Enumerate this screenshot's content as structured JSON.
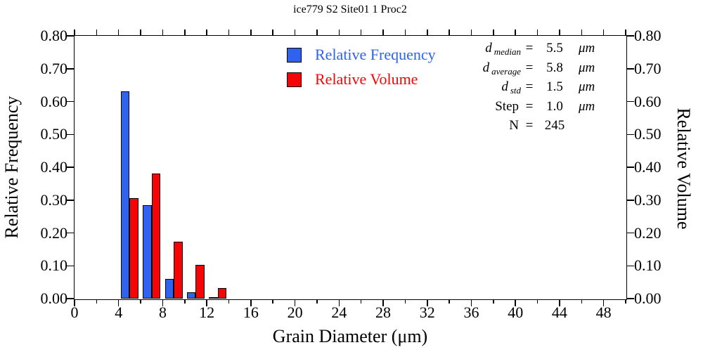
{
  "colors": {
    "frequency": "#2e62ef",
    "volume": "#f50505",
    "axis": "#000000",
    "background": "#ffffff"
  },
  "chart_data": {
    "type": "bar",
    "title": "ice779 S2 Site01 1 Proc2",
    "xlabel": "Grain Diameter (μm)",
    "ylabel_left": "Relative Frequency",
    "ylabel_right": "Relative Volume",
    "xlim": [
      0,
      50
    ],
    "ylim": [
      0,
      0.8
    ],
    "grid": "off",
    "legend_position": "upper-center-inside",
    "x_major_ticks": [
      {
        "v": 0,
        "label": "0"
      },
      {
        "v": 4,
        "label": "4"
      },
      {
        "v": 8,
        "label": "8"
      },
      {
        "v": 12,
        "label": "12"
      },
      {
        "v": 16,
        "label": "16"
      },
      {
        "v": 20,
        "label": "20"
      },
      {
        "v": 24,
        "label": "24"
      },
      {
        "v": 28,
        "label": "28"
      },
      {
        "v": 32,
        "label": "32"
      },
      {
        "v": 36,
        "label": "36"
      },
      {
        "v": 40,
        "label": "40"
      },
      {
        "v": 44,
        "label": "44"
      },
      {
        "v": 48,
        "label": "48"
      }
    ],
    "x_minor_ticks": [
      2,
      6,
      10,
      14,
      18,
      22,
      26,
      30,
      34,
      38,
      42,
      46,
      50
    ],
    "x_top_ticks": [
      0,
      2,
      4,
      6,
      8,
      10,
      12,
      14,
      16,
      18,
      20,
      22,
      24,
      26,
      28,
      30,
      32,
      34,
      36,
      38,
      40,
      42,
      44,
      46,
      48,
      50
    ],
    "y_ticks": [
      {
        "v": 0.0,
        "label": "0.00"
      },
      {
        "v": 0.1,
        "label": "0.10"
      },
      {
        "v": 0.2,
        "label": "0.20"
      },
      {
        "v": 0.3,
        "label": "0.30"
      },
      {
        "v": 0.4,
        "label": "0.40"
      },
      {
        "v": 0.5,
        "label": "0.50"
      },
      {
        "v": 0.6,
        "label": "0.60"
      },
      {
        "v": 0.7,
        "label": "0.70"
      },
      {
        "v": 0.8,
        "label": "0.80"
      }
    ],
    "series": [
      {
        "name": "Relative Frequency",
        "color": "#2e62ef",
        "bars": [
          {
            "x0": 4.2,
            "x1": 5.0,
            "value": 0.63
          },
          {
            "x0": 6.2,
            "x1": 7.0,
            "value": 0.285
          },
          {
            "x0": 8.2,
            "x1": 9.0,
            "value": 0.06
          },
          {
            "x0": 10.2,
            "x1": 11.0,
            "value": 0.02
          },
          {
            "x0": 12.2,
            "x1": 13.0,
            "value": 0.004
          }
        ]
      },
      {
        "name": "Relative Volume",
        "color": "#f50505",
        "bars": [
          {
            "x0": 5.0,
            "x1": 5.8,
            "value": 0.306
          },
          {
            "x0": 7.0,
            "x1": 7.8,
            "value": 0.38
          },
          {
            "x0": 9.0,
            "x1": 9.8,
            "value": 0.174
          },
          {
            "x0": 11.0,
            "x1": 11.8,
            "value": 0.103
          },
          {
            "x0": 13.0,
            "x1": 13.8,
            "value": 0.033
          }
        ]
      }
    ],
    "legend": [
      {
        "label": "Relative Frequency",
        "color": "#2e62ef"
      },
      {
        "label": "Relative Volume",
        "color": "#f50505"
      }
    ],
    "stats": [
      {
        "name": "d",
        "sub": "median",
        "eq": "=",
        "value": "5.5",
        "unit": "μm"
      },
      {
        "name": "d",
        "sub": "average",
        "eq": "=",
        "value": "5.8",
        "unit": "μm"
      },
      {
        "name": "d",
        "sub": "std",
        "eq": "=",
        "value": "1.5",
        "unit": "μm"
      },
      {
        "name": "Step",
        "sub": "",
        "eq": "=",
        "value": "1.0",
        "unit": "μm"
      },
      {
        "name": "N",
        "sub": "",
        "eq": "=",
        "value": "245",
        "unit": ""
      }
    ]
  }
}
